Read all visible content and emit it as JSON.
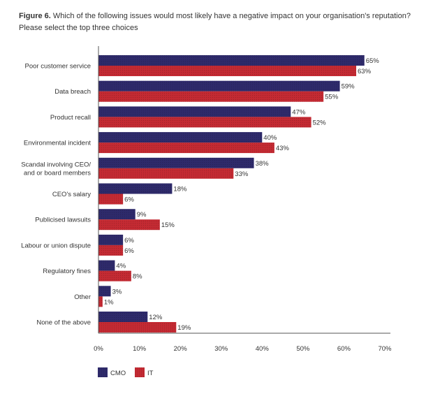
{
  "caption": {
    "figure": "Figure 6.",
    "question": "Which of the following issues would most likely have a negative impact on your organisation's reputation?",
    "instruction": "Please select the top three choices"
  },
  "colors": {
    "cmo": "#2e2a6b",
    "it": "#c42a33",
    "axis": "#555555"
  },
  "chart_data": {
    "type": "bar",
    "orientation": "horizontal",
    "title": "Which of the following issues would most likely have a negative impact on your organisation's reputation?",
    "categories": [
      "Poor customer service",
      "Data breach",
      "Product recall",
      "Environmental incident",
      "Scandal involving CEO/ and or board members",
      "CEO's salary",
      "Publicised lawsuits",
      "Labour or union dispute",
      "Regulatory fines",
      "Other",
      "None of the above"
    ],
    "category_lines": [
      [
        "Poor customer service"
      ],
      [
        "Data breach"
      ],
      [
        "Product recall"
      ],
      [
        "Environmental incident"
      ],
      [
        "Scandal involving CEO/",
        "and or board members"
      ],
      [
        "CEO's salary"
      ],
      [
        "Publicised lawsuits"
      ],
      [
        "Labour or union dispute"
      ],
      [
        "Regulatory fines"
      ],
      [
        "Other"
      ],
      [
        "None of the above"
      ]
    ],
    "series": [
      {
        "name": "CMO",
        "values": [
          65,
          59,
          47,
          40,
          38,
          18,
          9,
          6,
          4,
          3,
          12
        ],
        "labels": [
          "65%",
          "59%",
          "47%",
          "40%",
          "38%",
          "18%",
          "9%",
          "6%",
          "4%",
          "3%",
          "12%"
        ]
      },
      {
        "name": "IT",
        "values": [
          63,
          55,
          52,
          43,
          33,
          6,
          15,
          6,
          8,
          1,
          19
        ],
        "labels": [
          "63%",
          "55%",
          "52%",
          "43%",
          "33%",
          "6%",
          "15%",
          "6%",
          "8%",
          "1%",
          "19%"
        ]
      }
    ],
    "xticks": [
      0,
      10,
      20,
      30,
      40,
      50,
      60,
      70
    ],
    "xtick_labels": [
      "0%",
      "10%",
      "20%",
      "30%",
      "40%",
      "50%",
      "60%",
      "70%"
    ],
    "xlim": [
      0,
      70
    ],
    "xlabel": "",
    "ylabel": "",
    "legend": [
      "CMO",
      "IT"
    ],
    "legend_position": "bottom-left",
    "grid": false
  }
}
